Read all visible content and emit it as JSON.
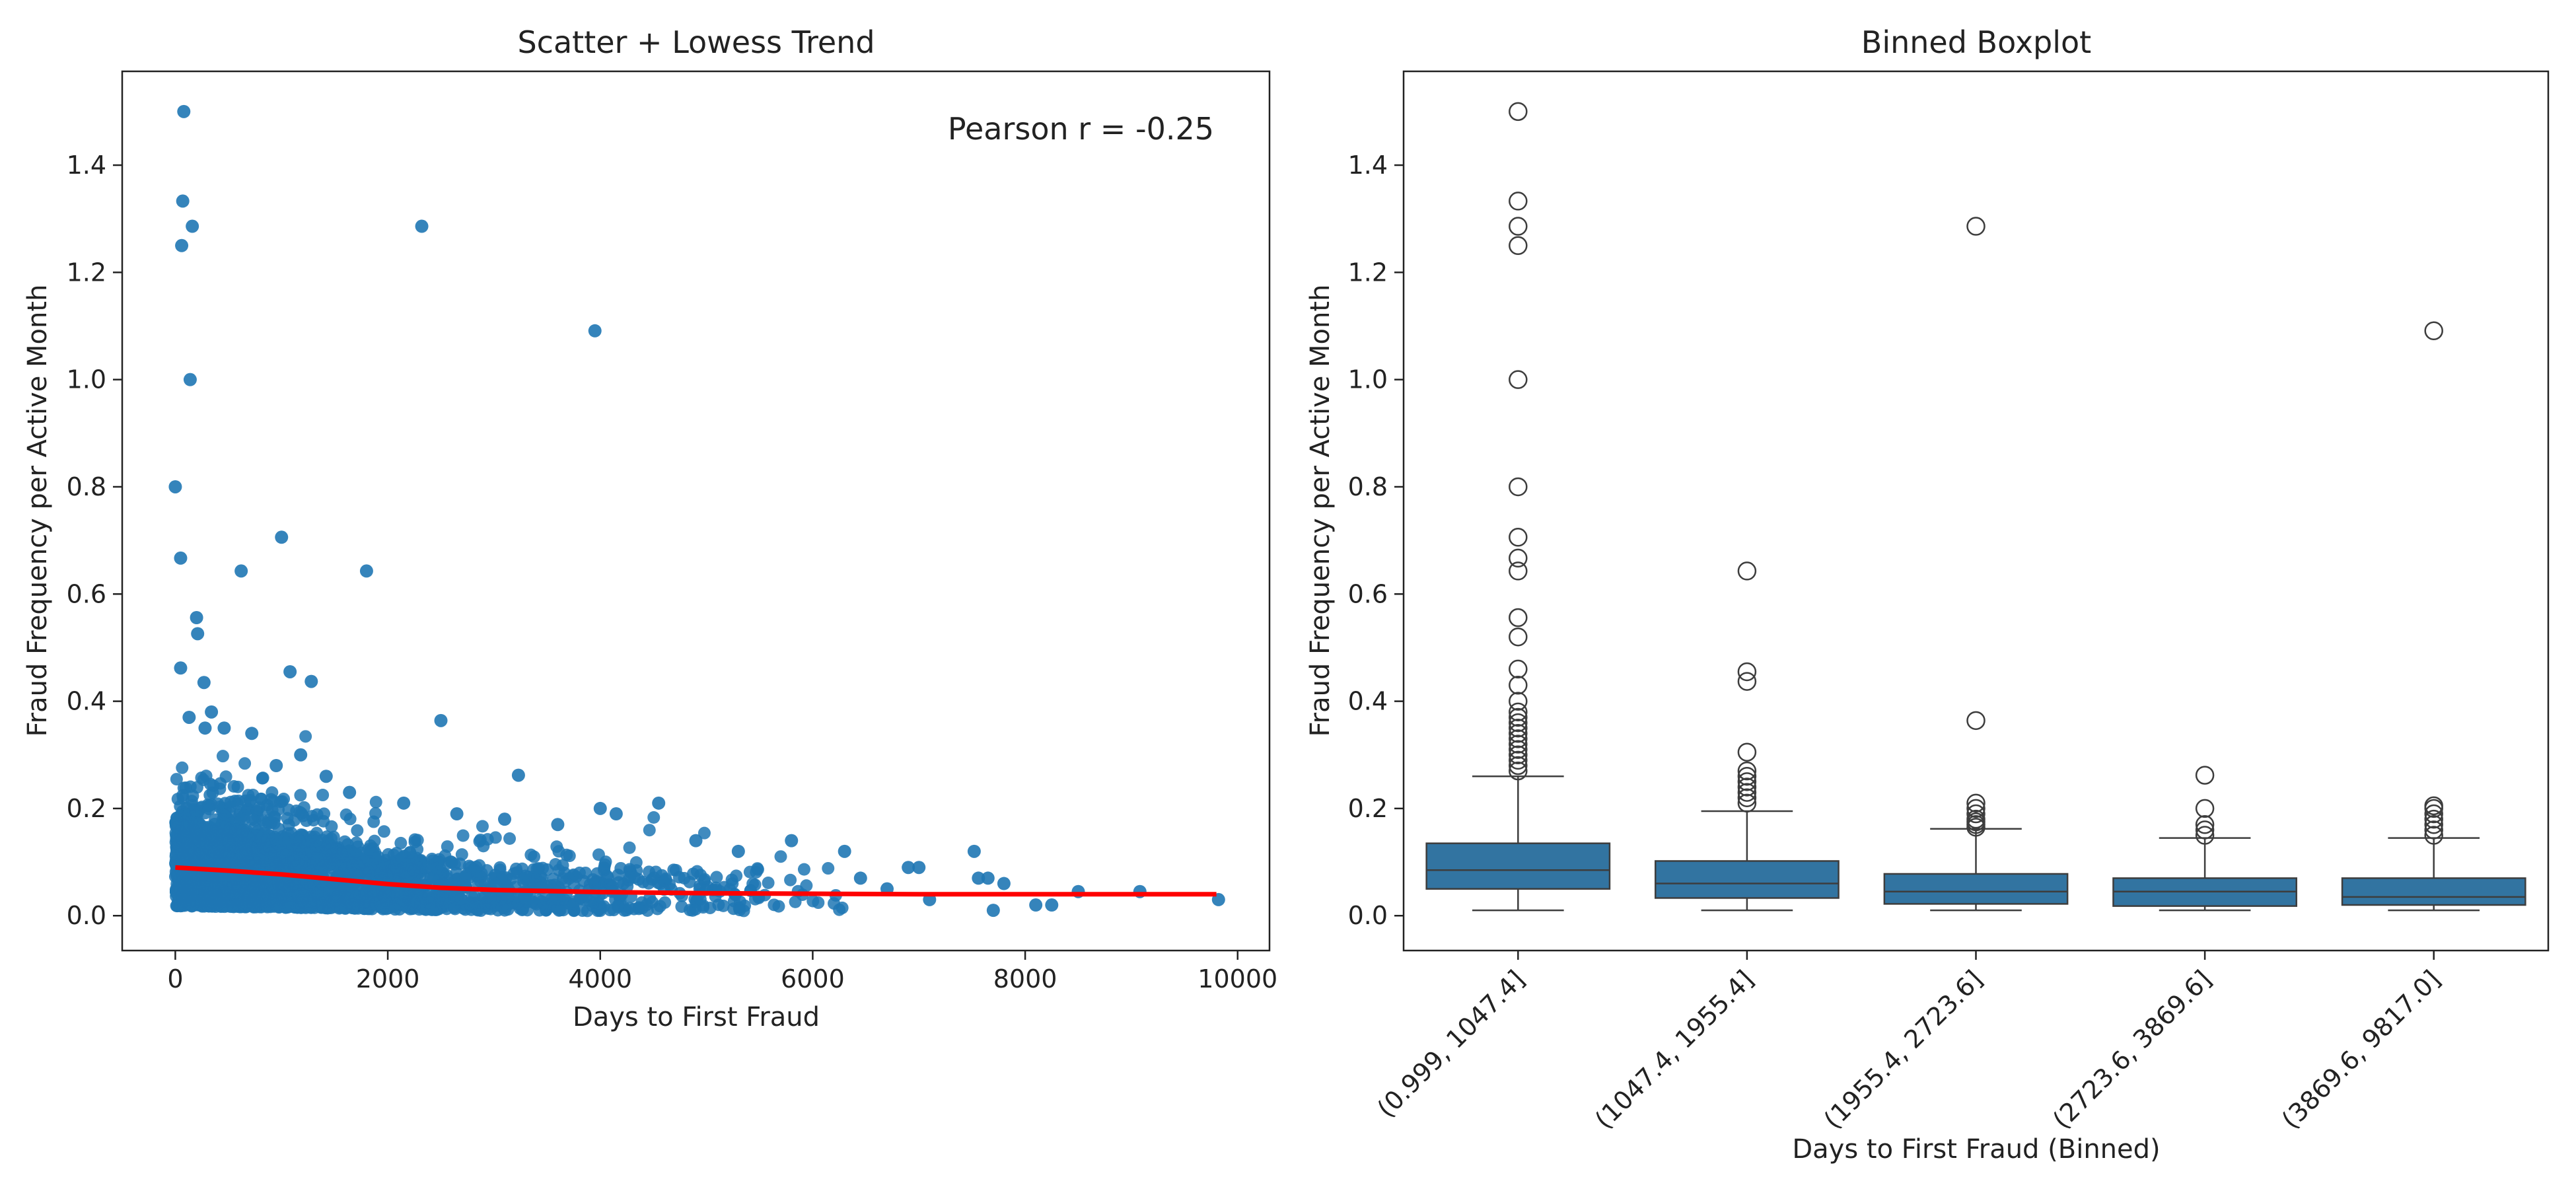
{
  "chart_data": [
    {
      "type": "scatter",
      "title": "Scatter + Lowess Trend",
      "xlabel": "Days to First Fraud",
      "ylabel": "Fraud Frequency per Active Month",
      "annotation": "Pearson r = -0.25",
      "xlim": [
        -500,
        10300
      ],
      "ylim": [
        -0.065,
        1.575
      ],
      "xticks": [
        0,
        2000,
        4000,
        6000,
        8000,
        10000
      ],
      "yticks": [
        0.0,
        0.2,
        0.4,
        0.6,
        0.8,
        1.0,
        1.2,
        1.4
      ],
      "ytick_labels": [
        "0.0",
        "0.2",
        "0.4",
        "0.6",
        "0.8",
        "1.0",
        "1.2",
        "1.4"
      ],
      "colors": {
        "points": "#1f77b4",
        "trend": "#ff0000"
      },
      "series": [
        {
          "type": "scatter",
          "points": [
            [
              80,
              1.5
            ],
            [
              70,
              1.333
            ],
            [
              160,
              1.286
            ],
            [
              60,
              1.25
            ],
            [
              140,
              1.0
            ],
            [
              0,
              0.8
            ],
            [
              50,
              0.667
            ],
            [
              1000,
              0.706
            ],
            [
              620,
              0.643
            ],
            [
              1800,
              0.643
            ],
            [
              200,
              0.556
            ],
            [
              210,
              0.526
            ],
            [
              50,
              0.462
            ],
            [
              270,
              0.435
            ],
            [
              1080,
              0.455
            ],
            [
              1280,
              0.437
            ],
            [
              2500,
              0.364
            ],
            [
              3230,
              0.262
            ],
            [
              2320,
              1.286
            ],
            [
              3950,
              1.091
            ],
            [
              130,
              0.37
            ],
            [
              280,
              0.35
            ],
            [
              340,
              0.38
            ],
            [
              460,
              0.35
            ],
            [
              720,
              0.34
            ],
            [
              950,
              0.28
            ],
            [
              1180,
              0.3
            ],
            [
              1420,
              0.26
            ],
            [
              1640,
              0.23
            ],
            [
              2150,
              0.21
            ],
            [
              2650,
              0.19
            ],
            [
              3100,
              0.18
            ],
            [
              3600,
              0.17
            ],
            [
              4000,
              0.2
            ],
            [
              4150,
              0.19
            ],
            [
              4550,
              0.21
            ],
            [
              4900,
              0.14
            ],
            [
              5300,
              0.12
            ],
            [
              5800,
              0.14
            ],
            [
              6300,
              0.12
            ],
            [
              6450,
              0.07
            ],
            [
              6900,
              0.09
            ],
            [
              7000,
              0.09
            ],
            [
              7520,
              0.12
            ],
            [
              7560,
              0.07
            ],
            [
              7650,
              0.07
            ],
            [
              7700,
              0.01
            ],
            [
              7800,
              0.06
            ],
            [
              8100,
              0.02
            ],
            [
              8250,
              0.02
            ],
            [
              8500,
              0.045
            ],
            [
              9080,
              0.045
            ],
            [
              9820,
              0.03
            ],
            [
              6700,
              0.05
            ],
            [
              7100,
              0.03
            ]
          ]
        },
        {
          "type": "line",
          "x": [
            0,
            500,
            1000,
            1500,
            2000,
            2500,
            3000,
            4000,
            5000,
            6000,
            7000,
            8000,
            9000,
            9800
          ],
          "y": [
            0.09,
            0.084,
            0.077,
            0.068,
            0.059,
            0.052,
            0.048,
            0.044,
            0.042,
            0.041,
            0.04,
            0.04,
            0.04,
            0.04
          ]
        }
      ]
    },
    {
      "type": "boxplot",
      "title": "Binned Boxplot",
      "xlabel": "Days to First Fraud (Binned)",
      "ylabel": "Fraud Frequency per Active Month",
      "ylim": [
        -0.065,
        1.575
      ],
      "yticks": [
        0.0,
        0.2,
        0.4,
        0.6,
        0.8,
        1.0,
        1.2,
        1.4
      ],
      "ytick_labels": [
        "0.0",
        "0.2",
        "0.4",
        "0.6",
        "0.8",
        "1.0",
        "1.2",
        "1.4"
      ],
      "categories": [
        "(0.999, 1047.4]",
        "(1047.4, 1955.4]",
        "(1955.4, 2723.6]",
        "(2723.6, 3869.6]",
        "(3869.6, 9817.0]"
      ],
      "colors": {
        "box": "#3274a1",
        "edge": "#3d3d3d"
      },
      "boxes": [
        {
          "whislo": 0.01,
          "q1": 0.05,
          "med": 0.085,
          "q3": 0.135,
          "whishi": 0.26,
          "fliers": [
            0.27,
            0.28,
            0.29,
            0.3,
            0.31,
            0.32,
            0.33,
            0.34,
            0.35,
            0.36,
            0.37,
            0.38,
            0.4,
            0.43,
            0.46,
            0.52,
            0.556,
            0.643,
            0.667,
            0.706,
            0.8,
            1.0,
            1.25,
            1.286,
            1.333,
            1.5
          ]
        },
        {
          "whislo": 0.01,
          "q1": 0.033,
          "med": 0.06,
          "q3": 0.102,
          "whishi": 0.195,
          "fliers": [
            0.21,
            0.22,
            0.23,
            0.24,
            0.25,
            0.26,
            0.27,
            0.305,
            0.437,
            0.455,
            0.643
          ]
        },
        {
          "whislo": 0.01,
          "q1": 0.022,
          "med": 0.045,
          "q3": 0.078,
          "whishi": 0.162,
          "fliers": [
            0.165,
            0.17,
            0.175,
            0.18,
            0.19,
            0.2,
            0.21,
            0.364,
            1.286
          ]
        },
        {
          "whislo": 0.01,
          "q1": 0.018,
          "med": 0.045,
          "q3": 0.07,
          "whishi": 0.145,
          "fliers": [
            0.15,
            0.16,
            0.17,
            0.2,
            0.262
          ]
        },
        {
          "whislo": 0.01,
          "q1": 0.02,
          "med": 0.035,
          "q3": 0.07,
          "whishi": 0.145,
          "fliers": [
            0.15,
            0.16,
            0.17,
            0.18,
            0.19,
            0.2,
            0.205,
            1.091
          ]
        }
      ]
    }
  ]
}
